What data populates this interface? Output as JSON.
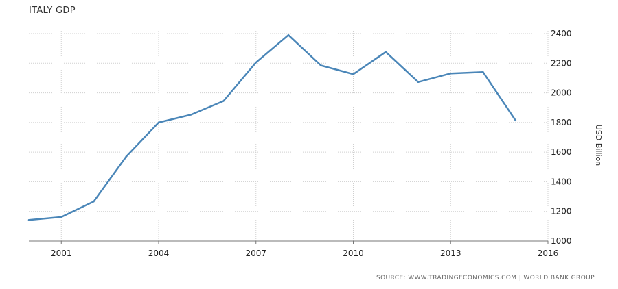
{
  "chart_data": {
    "type": "line",
    "title": "ITALY GDP",
    "ylabel": "USD Billion",
    "xlim": [
      2000,
      2016
    ],
    "ylim": [
      1000,
      2400
    ],
    "x_ticks": [
      "2001",
      "2004",
      "2007",
      "2010",
      "2013",
      "2016"
    ],
    "y_ticks": [
      "1000",
      "1200",
      "1400",
      "1600",
      "1800",
      "2000",
      "2200",
      "2400"
    ],
    "grid": "dotted",
    "series": [
      {
        "color": "#4a86b8",
        "x": [
          2000,
          2001,
          2002,
          2003,
          2004,
          2005,
          2006,
          2007,
          2008,
          2009,
          2010,
          2011,
          2012,
          2013,
          2014,
          2015
        ],
        "values": [
          1142,
          1162,
          1267,
          1570,
          1800,
          1853,
          1945,
          2205,
          2390,
          2185,
          2126,
          2276,
          2073,
          2131,
          2140,
          1814
        ]
      }
    ]
  },
  "source": "SOURCE: WWW.TRADINGECONOMICS.COM | WORLD BANK GROUP"
}
